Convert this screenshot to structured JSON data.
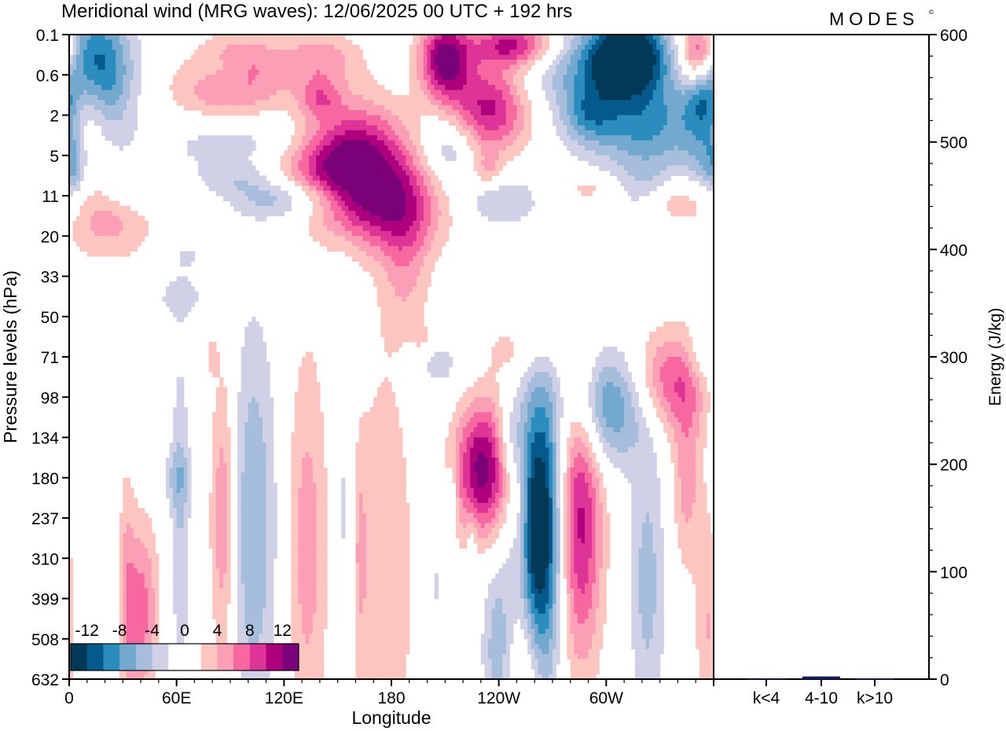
{
  "header": {
    "title": "Meridional wind (MRG waves):  12/06/2025  00 UTC  + 192 hrs",
    "brand": "MODES",
    "brand_mark": "©"
  },
  "chart_data": [
    {
      "type": "heatmap",
      "title": "Meridional wind (MRG waves):  12/06/2025  00 UTC  + 192 hrs",
      "xlabel": "Longitude",
      "ylabel": "Pressure levels (hPa)",
      "x_ticks": [
        {
          "lon": 0,
          "label": "0"
        },
        {
          "lon": 60,
          "label": "60E"
        },
        {
          "lon": 120,
          "label": "120E"
        },
        {
          "lon": 180,
          "label": "180"
        },
        {
          "lon": 240,
          "label": "120W"
        },
        {
          "lon": 300,
          "label": "60W"
        }
      ],
      "xlim": [
        0,
        360
      ],
      "y_levels": [
        "0.1",
        "0.6",
        "2",
        "5",
        "11",
        "20",
        "33",
        "50",
        "71",
        "98",
        "134",
        "180",
        "237",
        "310",
        "399",
        "508",
        "632"
      ],
      "colorbar": {
        "labels": [
          "-12",
          "-8",
          "-4",
          "0",
          "4",
          "8",
          "12"
        ],
        "bin_colors": [
          "#023858",
          "#045a8d",
          "#2b8cbe",
          "#74a9cf",
          "#a6bddb",
          "#d0d1e6",
          "#ffffff",
          "#ffffff",
          "#fcc5c0",
          "#fa9fb5",
          "#f768a1",
          "#dd3497",
          "#ae017e",
          "#7a0177"
        ],
        "placement": "lower-left inside"
      },
      "features": [
        {
          "lon": 14,
          "lev": 1.0,
          "v": -14,
          "w": 14,
          "h": 1.1
        },
        {
          "lon": 9,
          "lev": 1.8,
          "v": 9,
          "w": 10,
          "h": 0.9
        },
        {
          "lon": 22,
          "lev": 4.6,
          "v": 5,
          "w": 18,
          "h": 0.7
        },
        {
          "lon": 2,
          "lev": 3.3,
          "v": -5,
          "w": 5,
          "h": 0.7
        },
        {
          "lon": 35,
          "lev": 3.8,
          "v": -3,
          "w": 12,
          "h": 0.5
        },
        {
          "lon": 90,
          "lev": 1.5,
          "v": 6,
          "w": 24,
          "h": 0.6
        },
        {
          "lon": 95,
          "lev": 2.6,
          "v": -4,
          "w": 30,
          "h": 0.6
        },
        {
          "lon": 95,
          "lev": 0.6,
          "v": 5,
          "w": 16,
          "h": 0.5
        },
        {
          "lon": 88,
          "lev": 0.9,
          "v": -3,
          "w": 10,
          "h": 0.35
        },
        {
          "lon": 95,
          "lev": 3.6,
          "v": -3,
          "w": 16,
          "h": 0.3
        },
        {
          "lon": 140,
          "lev": 0.6,
          "v": 5,
          "w": 16,
          "h": 0.5
        },
        {
          "lon": 140,
          "lev": 1.6,
          "v": 5,
          "w": 8,
          "h": 0.35
        },
        {
          "lon": 135,
          "lev": 3.3,
          "v": 4,
          "w": 24,
          "h": 0.6
        },
        {
          "lon": 160,
          "lev": 3.1,
          "v": 12,
          "w": 20,
          "h": 1.0
        },
        {
          "lon": 180,
          "lev": 4.3,
          "v": 8,
          "w": 22,
          "h": 0.8
        },
        {
          "lon": 188,
          "lev": 5.7,
          "v": 4,
          "w": 10,
          "h": 1.4
        },
        {
          "lon": 128,
          "lev": 4.0,
          "v": -3,
          "w": 22,
          "h": 0.3
        },
        {
          "lon": 115,
          "lev": 4.2,
          "v": -3,
          "w": 18,
          "h": 0.35
        },
        {
          "lon": 66,
          "lev": 5.5,
          "v": -3,
          "w": 4,
          "h": 0.2
        },
        {
          "lon": 62,
          "lev": 6.5,
          "v": -3,
          "w": 10,
          "h": 0.4
        },
        {
          "lon": 210,
          "lev": 0.6,
          "v": 13,
          "w": 10,
          "h": 0.7
        },
        {
          "lon": 248,
          "lev": 0.25,
          "v": 11,
          "w": 16,
          "h": 0.4
        },
        {
          "lon": 235,
          "lev": 1.8,
          "v": 11,
          "w": 16,
          "h": 0.8
        },
        {
          "lon": 212,
          "lev": 2.8,
          "v": -5,
          "w": 10,
          "h": 0.6
        },
        {
          "lon": 234,
          "lev": 3.4,
          "v": 4,
          "w": 6,
          "h": 0.3
        },
        {
          "lon": 240,
          "lev": 4.1,
          "v": -4,
          "w": 16,
          "h": 0.5
        },
        {
          "lon": 285,
          "lev": 0.9,
          "v": -5,
          "w": 30,
          "h": 0.8
        },
        {
          "lon": 312,
          "lev": 0.5,
          "v": -15,
          "w": 16,
          "h": 0.7
        },
        {
          "lon": 322,
          "lev": 2.3,
          "v": -8,
          "w": 24,
          "h": 0.8
        },
        {
          "lon": 290,
          "lev": 2.0,
          "v": -5,
          "w": 10,
          "h": 0.5
        },
        {
          "lon": 352,
          "lev": 0.5,
          "v": 13,
          "w": 8,
          "h": 0.6
        },
        {
          "lon": 355,
          "lev": 1.5,
          "v": -8,
          "w": 8,
          "h": 0.8
        },
        {
          "lon": 325,
          "lev": 3.9,
          "v": -4,
          "w": 12,
          "h": 0.5
        },
        {
          "lon": 335,
          "lev": 4.1,
          "v": 5,
          "w": 12,
          "h": 0.4
        },
        {
          "lon": 355,
          "lev": 3.2,
          "v": -3,
          "w": 8,
          "h": 0.5
        },
        {
          "lon": 290,
          "lev": 3.8,
          "v": 3,
          "w": 10,
          "h": 0.25
        },
        {
          "lon": 60,
          "lev": 11.0,
          "v": -3,
          "w": 6,
          "h": 0.5
        },
        {
          "lon": 5,
          "lev": 8.5,
          "v": -3,
          "w": 5,
          "h": 1.0
        },
        {
          "lon": 80,
          "lev": 8.0,
          "v": 3,
          "w": 2,
          "h": 0.3
        },
        {
          "lon": 335,
          "lev": 8.6,
          "v": 8,
          "w": 16,
          "h": 0.9
        },
        {
          "lon": 352,
          "lev": 8.0,
          "v": -3,
          "w": 6,
          "h": 0.5
        },
        {
          "lon": 252,
          "lev": 7.8,
          "v": 3,
          "w": 14,
          "h": 0.5
        },
        {
          "lon": 206,
          "lev": 8.2,
          "v": -3,
          "w": 12,
          "h": 0.5
        },
        {
          "lon": 197,
          "lev": 7.5,
          "v": 3,
          "w": 4,
          "h": 0.2
        },
        {
          "lon": 302,
          "lev": 9.2,
          "v": -9,
          "w": 16,
          "h": 1.0
        },
        {
          "lon": 32,
          "lev": 13.5,
          "v": 3,
          "w": 3,
          "h": 2.3
        },
        {
          "lon": 40,
          "lev": 14.3,
          "v": 7,
          "w": 7,
          "h": 1.6
        },
        {
          "lon": 62,
          "lev": 12.0,
          "v": -4,
          "w": 4,
          "h": 3.0
        },
        {
          "lon": 86,
          "lev": 12.0,
          "v": 6,
          "w": 5,
          "h": 2.6
        },
        {
          "lon": 103,
          "lev": 12.2,
          "v": -6,
          "w": 9,
          "h": 3.5
        },
        {
          "lon": 133,
          "lev": 12.7,
          "v": 5,
          "w": 8,
          "h": 3.6
        },
        {
          "lon": 154,
          "lev": 12.0,
          "v": -3,
          "w": 4,
          "h": 3.0
        },
        {
          "lon": 176,
          "lev": 13.5,
          "v": 4,
          "w": 12,
          "h": 4.0
        },
        {
          "lon": 162,
          "lev": 12.7,
          "v": 3,
          "w": 3,
          "h": 2.0
        },
        {
          "lon": 231,
          "lev": 10.8,
          "v": 13,
          "w": 11,
          "h": 1.2
        },
        {
          "lon": 246,
          "lev": 10.0,
          "v": -4,
          "w": 5,
          "h": 0.7
        },
        {
          "lon": 239,
          "lev": 15.2,
          "v": -5,
          "w": 6,
          "h": 1.7
        },
        {
          "lon": 263,
          "lev": 12.3,
          "v": -16,
          "w": 9,
          "h": 2.6
        },
        {
          "lon": 255,
          "lev": 15.8,
          "v": 5,
          "w": 6,
          "h": 1.5
        },
        {
          "lon": 285,
          "lev": 12.0,
          "v": 11,
          "w": 9,
          "h": 2.6
        },
        {
          "lon": 323,
          "lev": 13.6,
          "v": -5,
          "w": 7,
          "h": 2.4
        },
        {
          "lon": 345,
          "lev": 11.0,
          "v": 5,
          "w": 6,
          "h": 1.6
        },
        {
          "lon": 357,
          "lev": 14.8,
          "v": 4,
          "w": 5,
          "h": 2.0
        },
        {
          "lon": 252,
          "lev": 12.0,
          "v": 3,
          "w": 3,
          "h": 1.2
        },
        {
          "lon": 214,
          "lev": 11.3,
          "v": -3,
          "w": 2,
          "h": 0.5
        },
        {
          "lon": 225,
          "lev": 12.5,
          "v": -3,
          "w": 2,
          "h": 0.6
        },
        {
          "lon": 205,
          "lev": 13.7,
          "v": -3,
          "w": 2,
          "h": 0.4
        }
      ]
    },
    {
      "type": "bar",
      "categories": [
        "k<4",
        "4-10",
        "k>10"
      ],
      "values": [
        0.8,
        2.5,
        0.6
      ],
      "ylabel": "Energy (J/kg)",
      "ylim": [
        0,
        600
      ],
      "y_ticks": [
        0,
        100,
        200,
        300,
        400,
        500,
        600
      ],
      "bar_color": "#1a1a5e"
    }
  ]
}
